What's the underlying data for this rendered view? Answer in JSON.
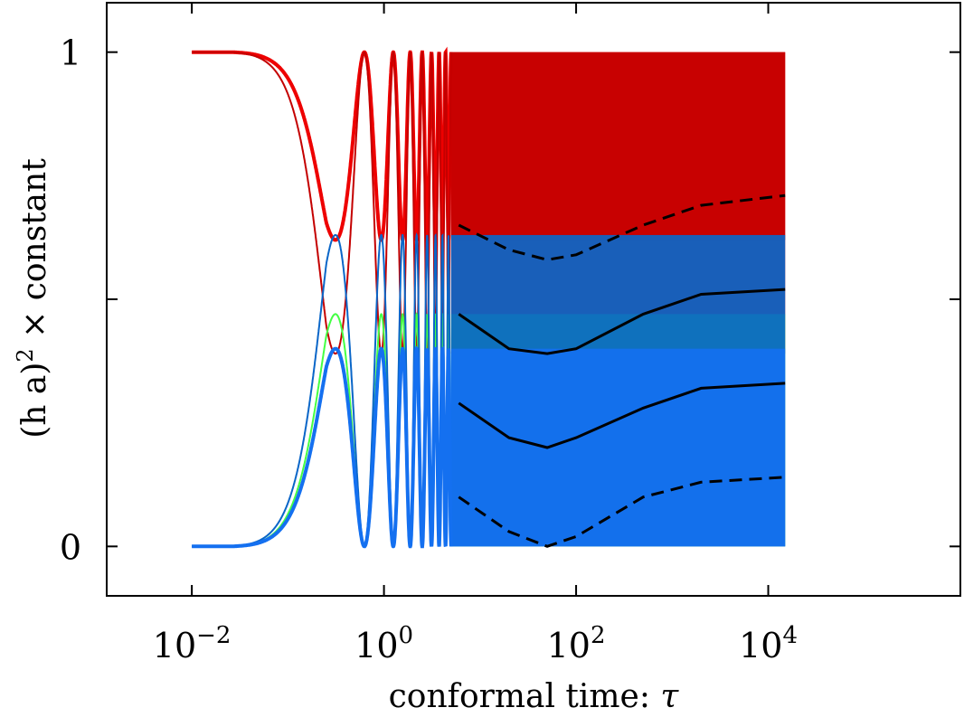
{
  "chart_data": {
    "type": "line",
    "xlabel_text": "conformal time: ",
    "xlabel_symbol": "τ",
    "ylabel_main": "(h a)",
    "ylabel_sup": "2",
    "ylabel_rest": " × constant",
    "x_scale": "log",
    "xlim": [
      0.0013,
      1000000
    ],
    "ylim": [
      -0.1,
      1.1
    ],
    "x_ticks": [
      {
        "value": 0.01,
        "base": "10",
        "exp": "−2"
      },
      {
        "value": 1,
        "base": "10",
        "exp": "0"
      },
      {
        "value": 100,
        "base": "10",
        "exp": "2"
      },
      {
        "value": 10000,
        "base": "10",
        "exp": "4"
      }
    ],
    "y_ticks": [
      {
        "value": 0,
        "label": "0"
      },
      {
        "value": 0.5,
        "label": ""
      },
      {
        "value": 1,
        "label": "1"
      }
    ],
    "grid": false,
    "legend": "none",
    "series": [
      {
        "color": "#ee0000",
        "style": "oscillating-filled",
        "x_range": [
          0.01,
          15000
        ],
        "y_range": [
          0.62,
          1.0
        ]
      },
      {
        "color": "#c40000",
        "style": "oscillating-filled",
        "x_range": [
          0.01,
          15000
        ],
        "y_range": [
          0.39,
          1.0
        ]
      },
      {
        "color": "#44ff44",
        "style": "oscillating-filled",
        "x_range": [
          0.01,
          15000
        ],
        "y_range": [
          0.0,
          0.47
        ]
      },
      {
        "color": "#0a66c8",
        "style": "oscillating-filled",
        "x_range": [
          0.01,
          15000
        ],
        "y_range": [
          0.0,
          0.63
        ]
      },
      {
        "color": "#1470f0",
        "style": "oscillating-filled",
        "x_range": [
          0.01,
          15000
        ],
        "y_range": [
          0.0,
          0.4
        ]
      }
    ],
    "envelopes": [
      {
        "style": "dashed",
        "x": [
          6,
          20,
          50,
          100,
          500,
          2000,
          15000
        ],
        "y": [
          0.65,
          0.6,
          0.58,
          0.59,
          0.65,
          0.69,
          0.71
        ]
      },
      {
        "style": "solid",
        "x": [
          6,
          20,
          50,
          100,
          500,
          2000,
          15000
        ],
        "y": [
          0.47,
          0.4,
          0.39,
          0.4,
          0.47,
          0.51,
          0.52
        ]
      },
      {
        "style": "solid",
        "x": [
          6,
          20,
          50,
          100,
          500,
          2000,
          15000
        ],
        "y": [
          0.29,
          0.22,
          0.2,
          0.22,
          0.28,
          0.32,
          0.33
        ]
      },
      {
        "style": "dashed",
        "x": [
          6,
          20,
          50,
          100,
          500,
          2000,
          15000
        ],
        "y": [
          0.1,
          0.03,
          0.0,
          0.02,
          0.1,
          0.13,
          0.14
        ]
      }
    ]
  }
}
